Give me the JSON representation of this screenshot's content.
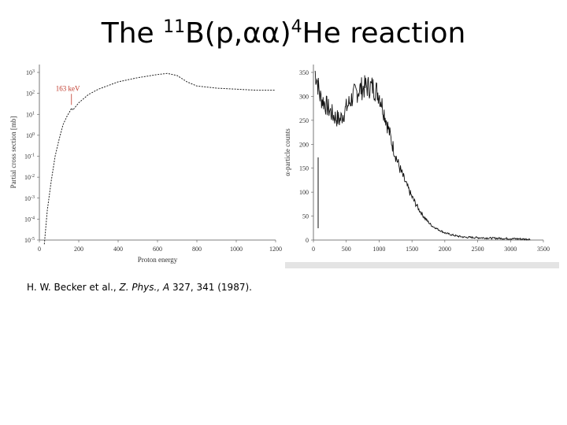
{
  "title": {
    "prefix": "The ",
    "sup1": "11",
    "middle": "B(p,αα)",
    "sup2": "4",
    "suffix": "He reaction"
  },
  "citation": {
    "authors": "H. W. Becker et al., ",
    "journal": "Z. Phys., A",
    "rest": " 327, 341 (1987)."
  },
  "chart_data": [
    {
      "type": "line",
      "xlabel": "Proton energy",
      "ylabel": "Partial cross section [mb]",
      "log_y": true,
      "xlim": [
        0,
        1200
      ],
      "ylim_exponent": [
        -5,
        3
      ],
      "x_ticks": [
        "0",
        "200",
        "400",
        "600",
        "800",
        "1000",
        "1200"
      ],
      "y_ticks": [
        "10^-5",
        "10^-4",
        "10^-3",
        "10^-2",
        "10^-1",
        "10^0",
        "10^1",
        "10^2",
        "10^3"
      ],
      "annotation": "163 keV",
      "series": [
        {
          "x": [
            25,
            40,
            60,
            80,
            100,
            120,
            140,
            155,
            163,
            170,
            200,
            250,
            300,
            400,
            500,
            600,
            650,
            700,
            750,
            800,
            900,
            1000,
            1100,
            1200
          ],
          "y_log10": [
            -5.2,
            -3.6,
            -2.2,
            -1.0,
            -0.2,
            0.5,
            0.9,
            1.15,
            1.3,
            1.2,
            1.55,
            1.95,
            2.2,
            2.55,
            2.75,
            2.9,
            2.95,
            2.85,
            2.55,
            2.35,
            2.25,
            2.2,
            2.15,
            2.15
          ]
        }
      ]
    },
    {
      "type": "line",
      "xlabel": "",
      "ylabel": "α-particle counts",
      "xlim": [
        0,
        3500
      ],
      "ylim": [
        0,
        350
      ],
      "x_ticks": [
        "0",
        "500",
        "1000",
        "1500",
        "2000",
        "2500",
        "3000",
        "3500"
      ],
      "y_ticks": [
        "0",
        "50",
        "100",
        "150",
        "200",
        "250",
        "300",
        "350"
      ],
      "series": [
        {
          "x": [
            0,
            50,
            100,
            200,
            300,
            400,
            500,
            600,
            700,
            800,
            900,
            1000,
            1100,
            1200,
            1300,
            1400,
            1500,
            1600,
            1700,
            1800,
            1900,
            2000,
            2100,
            2200,
            2300,
            2500,
            2700,
            3000,
            3200,
            3500
          ],
          "y": [
            360,
            340,
            300,
            280,
            260,
            250,
            275,
            300,
            315,
            320,
            320,
            305,
            255,
            200,
            155,
            120,
            90,
            65,
            45,
            30,
            22,
            15,
            11,
            8,
            6,
            5,
            4,
            3,
            2,
            1
          ]
        }
      ]
    }
  ]
}
